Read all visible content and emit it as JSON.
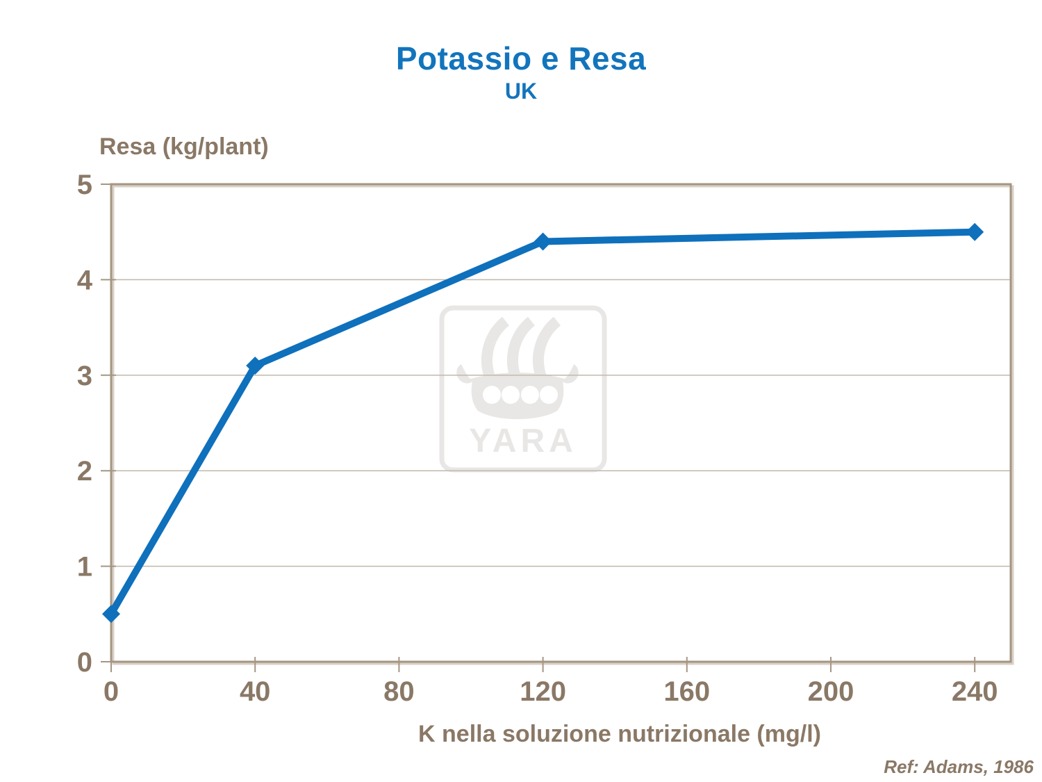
{
  "header": {
    "title": "Potassio e Resa",
    "subtitle": "UK"
  },
  "footer": {
    "reference": "Ref: Adams, 1986"
  },
  "watermark": {
    "label": "YARA"
  },
  "colors": {
    "title_blue": "#1274BD",
    "line_blue": "#0F70BC",
    "text_brown": "#8A7866",
    "axis_frame": "#A59683",
    "axis_frame_shadow": "#D9D0C6",
    "gridline": "#C2B8AB",
    "watermark_gray": "#E8E7E5",
    "background": "#FFFFFF"
  },
  "chart_data": {
    "type": "line",
    "title": "Potassio e Resa",
    "subtitle": "UK",
    "xlabel": "K nella soluzione nutrizionale (mg/l)",
    "ylabel": "Resa (kg/plant)",
    "annotation": "Ref: Adams, 1986",
    "series": [
      {
        "name": "Resa",
        "x": [
          0,
          40,
          120,
          240
        ],
        "y": [
          0.5,
          3.1,
          4.4,
          4.5
        ]
      }
    ],
    "xticks": [
      0,
      40,
      80,
      120,
      160,
      200,
      240
    ],
    "yticks": [
      0,
      1,
      2,
      3,
      4,
      5
    ],
    "xlim": [
      0,
      250
    ],
    "ylim": [
      0,
      5
    ],
    "grid": "horizontal",
    "legend": "none",
    "marker": "diamond"
  }
}
